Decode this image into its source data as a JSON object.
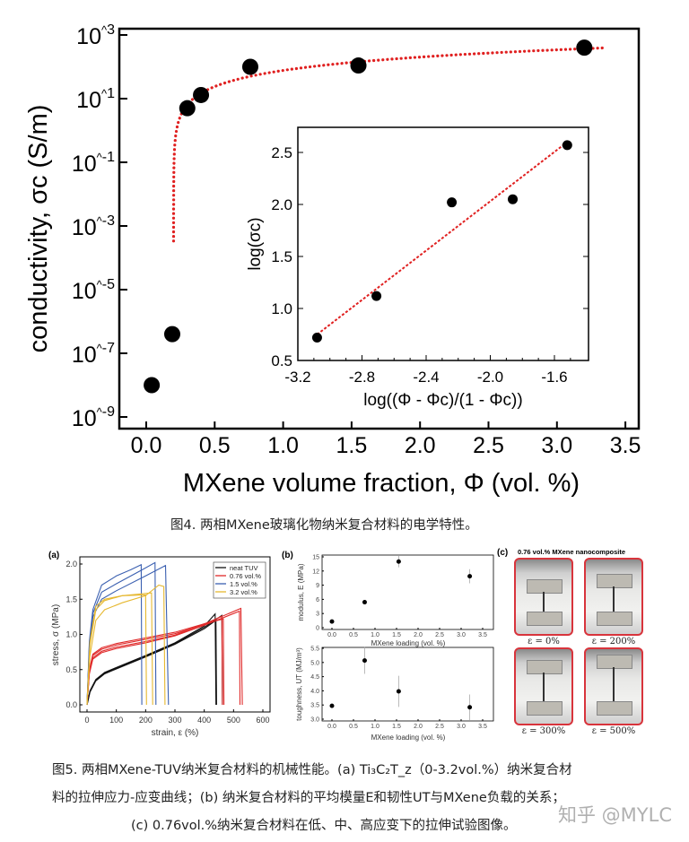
{
  "figure4": {
    "caption": "图4. 两相MXene玻璃化物纳米复合材料的电学特性。",
    "chart_data": [
      {
        "type": "scatter",
        "xlabel": "MXene volume fraction, Φ (vol. %)",
        "ylabel": "conductivity, σc (S/m)",
        "xlim": [
          0.0,
          3.5
        ],
        "ylim": [
          1e-09,
          1000.0
        ],
        "yscale": "log",
        "x_ticks": [
          "0.0",
          "0.5",
          "1.0",
          "1.5",
          "2.0",
          "2.5",
          "3.0",
          "3.5"
        ],
        "y_ticks": [
          "10^3",
          "10^1",
          "10^-1",
          "10^-3",
          "10^-5",
          "10^-7",
          "10^-9"
        ],
        "points": [
          [
            0.04,
            1e-08
          ],
          [
            0.19,
            4e-07
          ],
          [
            0.3,
            5
          ],
          [
            0.4,
            13
          ],
          [
            0.76,
            100
          ],
          [
            1.55,
            110
          ],
          [
            3.2,
            400
          ]
        ],
        "fit": {
          "style": "dotted",
          "color": "#e02020"
        },
        "marker_color": "#000000"
      },
      {
        "type": "scatter",
        "xlabel": "log((Φ - Φc)/(1 - Φc))",
        "ylabel": "log(σc)",
        "xlim": [
          -3.2,
          -1.4
        ],
        "ylim": [
          0.5,
          2.75
        ],
        "x_ticks": [
          "-3.2",
          "-2.8",
          "-2.4",
          "-2.0",
          "-1.6"
        ],
        "y_ticks": [
          "0.5",
          "1.0",
          "1.5",
          "2.0",
          "2.5"
        ],
        "points": [
          [
            -3.08,
            0.72
          ],
          [
            -2.71,
            1.12
          ],
          [
            -2.24,
            2.02
          ],
          [
            -1.86,
            2.05
          ],
          [
            -1.52,
            2.57
          ]
        ],
        "fit_line": [
          [
            -3.08,
            0.75
          ],
          [
            -1.52,
            2.6
          ]
        ],
        "fit": {
          "style": "dashed",
          "color": "#e02020"
        }
      }
    ]
  },
  "figure5": {
    "panel_a": {
      "label": "(a)",
      "chart_data": {
        "type": "line",
        "xlabel": "strain, ε (%)",
        "ylabel": "stress, σ (MPa)",
        "xlim": [
          0,
          600
        ],
        "ylim": [
          0,
          2.0
        ],
        "x_ticks": [
          "0",
          "100",
          "200",
          "300",
          "400",
          "500",
          "600"
        ],
        "y_ticks": [
          "0.0",
          "0.5",
          "1.0",
          "1.5",
          "2.0"
        ],
        "legend": "top-right",
        "series": [
          {
            "name": "neat TUV",
            "color": "#111111",
            "curves": [
              [
                [
                  0,
                  0
                ],
                [
                  10,
                  0.2
                ],
                [
                  30,
                  0.36
                ],
                [
                  60,
                  0.46
                ],
                [
                  100,
                  0.53
                ],
                [
                  200,
                  0.7
                ],
                [
                  300,
                  0.88
                ],
                [
                  400,
                  1.12
                ],
                [
                  437,
                  1.29
                ],
                [
                  440,
                  0
                ]
              ],
              [
                [
                  0,
                  0
                ],
                [
                  10,
                  0.19
                ],
                [
                  30,
                  0.35
                ],
                [
                  60,
                  0.45
                ],
                [
                  100,
                  0.52
                ],
                [
                  200,
                  0.69
                ],
                [
                  300,
                  0.87
                ],
                [
                  400,
                  1.1
                ],
                [
                  460,
                  1.27
                ],
                [
                  462,
                  0
                ]
              ],
              [
                [
                  0,
                  0
                ],
                [
                  10,
                  0.18
                ],
                [
                  30,
                  0.34
                ],
                [
                  60,
                  0.44
                ],
                [
                  100,
                  0.51
                ],
                [
                  200,
                  0.68
                ],
                [
                  300,
                  0.86
                ],
                [
                  400,
                  1.08
                ],
                [
                  440,
                  1.2
                ],
                [
                  442,
                  0
                ]
              ]
            ]
          },
          {
            "name": "0.76 vol.%",
            "color": "#e02a2a",
            "curves": [
              [
                [
                  0,
                  0
                ],
                [
                  8,
                  0.5
                ],
                [
                  20,
                  0.72
                ],
                [
                  50,
                  0.81
                ],
                [
                  100,
                  0.87
                ],
                [
                  200,
                  0.95
                ],
                [
                  300,
                  1.03
                ],
                [
                  400,
                  1.15
                ],
                [
                  465,
                  1.22
                ],
                [
                  467,
                  0
                ]
              ],
              [
                [
                  0,
                  0
                ],
                [
                  8,
                  0.48
                ],
                [
                  20,
                  0.7
                ],
                [
                  50,
                  0.79
                ],
                [
                  100,
                  0.85
                ],
                [
                  200,
                  0.93
                ],
                [
                  300,
                  1.01
                ],
                [
                  400,
                  1.14
                ],
                [
                  460,
                  1.26
                ],
                [
                  462,
                  0
                ]
              ],
              [
                [
                  0,
                  0
                ],
                [
                  8,
                  0.46
                ],
                [
                  20,
                  0.67
                ],
                [
                  50,
                  0.76
                ],
                [
                  100,
                  0.82
                ],
                [
                  200,
                  0.9
                ],
                [
                  300,
                  0.99
                ],
                [
                  400,
                  1.15
                ],
                [
                  525,
                  1.37
                ],
                [
                  530,
                  0
                ]
              ],
              [
                [
                  0,
                  0
                ],
                [
                  8,
                  0.44
                ],
                [
                  20,
                  0.65
                ],
                [
                  50,
                  0.74
                ],
                [
                  100,
                  0.8
                ],
                [
                  200,
                  0.88
                ],
                [
                  300,
                  0.98
                ],
                [
                  400,
                  1.13
                ],
                [
                  520,
                  1.33
                ],
                [
                  522,
                  0
                ]
              ]
            ]
          },
          {
            "name": "1.5 vol.%",
            "color": "#3a5fb0",
            "curves": [
              [
                [
                  0,
                  0
                ],
                [
                  8,
                  0.9
                ],
                [
                  20,
                  1.35
                ],
                [
                  50,
                  1.7
                ],
                [
                  100,
                  1.83
                ],
                [
                  150,
                  1.92
                ],
                [
                  185,
                  1.99
                ],
                [
                  187,
                  0
                ]
              ],
              [
                [
                  0,
                  0
                ],
                [
                  8,
                  0.85
                ],
                [
                  20,
                  1.3
                ],
                [
                  50,
                  1.6
                ],
                [
                  100,
                  1.72
                ],
                [
                  180,
                  1.9
                ],
                [
                  232,
                  2.02
                ],
                [
                  235,
                  0
                ]
              ],
              [
                [
                  0,
                  0
                ],
                [
                  8,
                  0.8
                ],
                [
                  20,
                  1.25
                ],
                [
                  50,
                  1.5
                ],
                [
                  100,
                  1.62
                ],
                [
                  200,
                  1.83
                ],
                [
                  268,
                  1.98
                ],
                [
                  278,
                  0
                ]
              ]
            ]
          },
          {
            "name": "3.2 vol.%",
            "color": "#e6b830",
            "curves": [
              [
                [
                  0,
                  0
                ],
                [
                  10,
                  0.9
                ],
                [
                  30,
                  1.4
                ],
                [
                  60,
                  1.5
                ],
                [
                  120,
                  1.55
                ],
                [
                  200,
                  1.56
                ],
                [
                  203,
                  0
                ]
              ],
              [
                [
                  0,
                  0
                ],
                [
                  10,
                  0.85
                ],
                [
                  30,
                  1.35
                ],
                [
                  60,
                  1.48
                ],
                [
                  120,
                  1.55
                ],
                [
                  220,
                  1.59
                ],
                [
                  224,
                  0
                ]
              ],
              [
                [
                  0,
                  0
                ],
                [
                  10,
                  0.7
                ],
                [
                  30,
                  1.2
                ],
                [
                  60,
                  1.35
                ],
                [
                  120,
                  1.45
                ],
                [
                  200,
                  1.55
                ],
                [
                  245,
                  1.7
                ],
                [
                  262,
                  1.68
                ],
                [
                  266,
                  0
                ]
              ]
            ]
          }
        ]
      }
    },
    "panel_b": {
      "label": "(b)",
      "chart_data": [
        {
          "type": "scatter",
          "xlabel": "MXene loading (vol. %)",
          "ylabel": "modulus, E (MPa)",
          "xlim": [
            -0.25,
            3.75
          ],
          "ylim": [
            0,
            15
          ],
          "x_ticks": [
            "0.0",
            "0.5",
            "1.0",
            "1.5",
            "2.0",
            "2.5",
            "3.0",
            "3.5"
          ],
          "y_ticks": [
            "0",
            "3",
            "6",
            "9",
            "12",
            "15"
          ],
          "points": [
            [
              0,
              1.3,
              0
            ],
            [
              0.76,
              5.4,
              0
            ],
            [
              1.55,
              14,
              1.2
            ],
            [
              3.2,
              10.9,
              1.5
            ]
          ]
        },
        {
          "type": "scatter",
          "xlabel": "MXene loading (vol. %)",
          "ylabel": "toughness, UT (MJ/m³)",
          "xlim": [
            -0.25,
            3.75
          ],
          "ylim": [
            3.0,
            5.5
          ],
          "x_ticks": [
            "0.0",
            "0.5",
            "1.0",
            "1.5",
            "2.0",
            "2.5",
            "3.0",
            "3.5"
          ],
          "y_ticks": [
            "3.0",
            "3.5",
            "4.0",
            "4.5",
            "5.0",
            "5.5"
          ],
          "points": [
            [
              0,
              3.47,
              0
            ],
            [
              0.76,
              5.07,
              0.47
            ],
            [
              1.55,
              3.98,
              0.55
            ],
            [
              3.2,
              3.42,
              0.45
            ]
          ]
        }
      ]
    },
    "panel_c": {
      "label": "(c)",
      "title": "0.76 vol.% MXene nanocomposite",
      "photos": [
        {
          "label": "ε = 0%",
          "strain": 0
        },
        {
          "label": "ε = 200%",
          "strain": 200
        },
        {
          "label": "ε = 300%",
          "strain": 300
        },
        {
          "label": "ε = 500%",
          "strain": 500
        }
      ]
    },
    "caption_lines": [
      "图5. 两相MXene-TUV纳米复合材料的机械性能。(a) Ti₃C₂T_z（0-3.2vol.%）纳米复合材",
      "料的拉伸应力-应变曲线；(b) 纳米复合材料的平均模量E和韧性UT与MXene负载的关系；",
      "(c) 0.76vol.%纳米复合材料在低、中、高应变下的拉伸试验图像。"
    ]
  },
  "watermark": "知乎 @MYLC"
}
